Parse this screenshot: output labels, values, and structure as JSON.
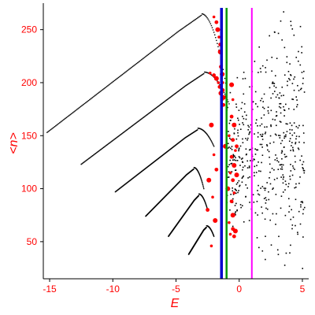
{
  "chart_data": {
    "type": "scatter",
    "title": "",
    "xlabel": "E",
    "ylabel": "<n>",
    "xlim": [
      -15.5,
      5.5
    ],
    "ylim": [
      15,
      275
    ],
    "xticks": [
      -15,
      -10,
      -5,
      0,
      5
    ],
    "yticks": [
      50,
      100,
      150,
      200,
      250
    ],
    "grid": false,
    "legend": "none",
    "colors": {
      "axis": "#000000",
      "tick_labels": "#ff0000",
      "points": "#000000",
      "highlight_points": "#ff0000",
      "vline_blue": "#0000cc",
      "vline_green": "#009900",
      "vline_magenta": "#ff00ff"
    },
    "vertical_lines": [
      {
        "x": -1.4,
        "color": "#0000cc"
      },
      {
        "x": -1.0,
        "color": "#009900"
      },
      {
        "x": 1.0,
        "color": "#ff00ff"
      }
    ],
    "bands": [
      {
        "x_start": -15.2,
        "y_start": 153,
        "x_peak": -3.0,
        "y_peak": 265,
        "x_end": -1.0,
        "y_end": 195
      },
      {
        "x_start": -12.5,
        "y_start": 123,
        "x_peak": -2.8,
        "y_peak": 210,
        "x_end": -0.8,
        "y_end": 180
      },
      {
        "x_start": -9.8,
        "y_start": 97,
        "x_peak": -3.3,
        "y_peak": 157,
        "x_end": -2.0,
        "y_end": 140
      },
      {
        "x_start": -7.4,
        "y_start": 74,
        "x_peak": -3.6,
        "y_peak": 120,
        "x_end": -2.8,
        "y_end": 100
      },
      {
        "x_start": -5.6,
        "y_start": 55,
        "x_peak": -3.2,
        "y_peak": 95,
        "x_end": -2.5,
        "y_end": 80
      },
      {
        "x_start": -4.0,
        "y_start": 38,
        "x_peak": -2.6,
        "y_peak": 65,
        "x_end": -2.0,
        "y_end": 55
      }
    ],
    "red_points": [
      {
        "x": -2.0,
        "y": 262
      },
      {
        "x": -1.8,
        "y": 257
      },
      {
        "x": -1.7,
        "y": 250
      },
      {
        "x": -1.6,
        "y": 243
      },
      {
        "x": -1.5,
        "y": 236
      },
      {
        "x": -1.5,
        "y": 229
      },
      {
        "x": -1.4,
        "y": 222
      },
      {
        "x": -1.45,
        "y": 215
      },
      {
        "x": -1.35,
        "y": 208
      },
      {
        "x": -1.3,
        "y": 200
      },
      {
        "x": -1.3,
        "y": 193
      },
      {
        "x": -1.25,
        "y": 186
      },
      {
        "x": -2.3,
        "y": 209
      },
      {
        "x": -2.0,
        "y": 207
      },
      {
        "x": -1.8,
        "y": 204
      },
      {
        "x": -1.65,
        "y": 200
      },
      {
        "x": -1.55,
        "y": 196
      },
      {
        "x": -1.45,
        "y": 190
      },
      {
        "x": -1.35,
        "y": 184
      },
      {
        "x": -1.25,
        "y": 179
      },
      {
        "x": -0.6,
        "y": 198
      },
      {
        "x": -0.5,
        "y": 184
      },
      {
        "x": -0.6,
        "y": 168
      },
      {
        "x": -0.4,
        "y": 160
      },
      {
        "x": -0.8,
        "y": 150
      },
      {
        "x": -0.5,
        "y": 146
      },
      {
        "x": -1.1,
        "y": 140
      },
      {
        "x": -0.3,
        "y": 136
      },
      {
        "x": -0.6,
        "y": 130
      },
      {
        "x": -0.4,
        "y": 122
      },
      {
        "x": -0.7,
        "y": 115
      },
      {
        "x": -0.5,
        "y": 108
      },
      {
        "x": -0.9,
        "y": 100
      },
      {
        "x": -0.4,
        "y": 96
      },
      {
        "x": -0.6,
        "y": 88
      },
      {
        "x": -0.5,
        "y": 75
      },
      {
        "x": -0.8,
        "y": 68
      },
      {
        "x": -0.5,
        "y": 62
      },
      {
        "x": -0.3,
        "y": 60
      },
      {
        "x": -0.7,
        "y": 57
      },
      {
        "x": -0.4,
        "y": 55
      },
      {
        "x": -2.2,
        "y": 160
      },
      {
        "x": -2.0,
        "y": 132
      },
      {
        "x": -1.8,
        "y": 118
      },
      {
        "x": -2.4,
        "y": 108
      },
      {
        "x": -2.1,
        "y": 92
      },
      {
        "x": -2.5,
        "y": 80
      },
      {
        "x": -1.9,
        "y": 70
      },
      {
        "x": -2.2,
        "y": 46
      },
      {
        "x": -0.2,
        "y": 140
      },
      {
        "x": -0.2,
        "y": 113
      }
    ],
    "cloud": {
      "x_min": -1.0,
      "x_max": 5.2,
      "y_min": 20,
      "y_max": 275
    }
  }
}
